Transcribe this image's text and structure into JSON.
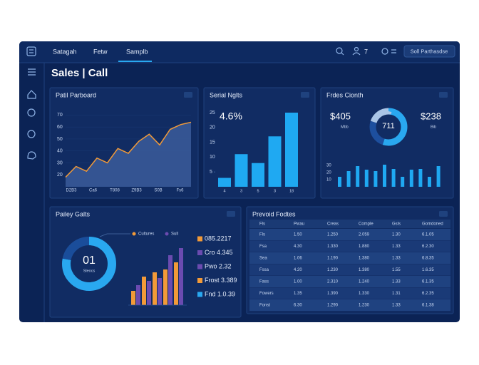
{
  "nav": {
    "tabs": [
      "Satagah",
      "Fetw",
      "Samplb"
    ],
    "badge": "7",
    "button": "Soll Parthasdse"
  },
  "header": {
    "title": "Sales | Call"
  },
  "revenue": {
    "title": "Patil Parboard",
    "type": "area",
    "color": "#f29a38",
    "values": [
      18,
      27,
      23,
      34,
      30,
      42,
      38,
      48,
      54,
      45,
      58,
      62,
      64
    ],
    "ylim": [
      10,
      75
    ],
    "yticks": [
      20,
      30,
      40,
      50,
      60,
      70
    ],
    "x_labels": [
      "D2B3",
      "Ca6",
      "T808",
      "Z9B3",
      "S0B",
      "Fs6"
    ]
  },
  "signals": {
    "title": "Serial Nglts",
    "kpi": "4.6%",
    "type": "bar",
    "color": "#1fa9f2",
    "values": [
      3,
      11,
      8,
      17,
      25
    ],
    "ylim": [
      0,
      25
    ],
    "yticks": [
      5,
      10,
      15,
      20,
      25
    ],
    "x_labels": [
      "4",
      "3",
      "5",
      "3",
      "18"
    ]
  },
  "growth": {
    "title": "Frdes Cionth",
    "kpi_left": "$405",
    "kpi_left_sub": "Mbb",
    "kpi_right": "$238",
    "kpi_right_sub": "Bib",
    "donut": {
      "center": "711",
      "values": [
        55,
        25,
        20
      ],
      "colors": [
        "#29a8f0",
        "#1d4f9e",
        "#a9c4e6"
      ]
    },
    "type": "bar",
    "color": "#1fa9f2",
    "values": [
      14,
      22,
      29,
      24,
      22,
      31,
      25,
      14,
      24,
      25,
      14,
      29
    ],
    "ylim": [
      0,
      40
    ],
    "yticks": [
      10,
      20,
      30
    ]
  },
  "payments": {
    "title": "Pailey Galts",
    "donut": {
      "center": "01",
      "sub": "Sleocs",
      "values": [
        78,
        22
      ],
      "colors": [
        "#29a8f0",
        "#1a4d9a"
      ]
    },
    "series": [
      {
        "name": "Cultures",
        "color": "#f29a38",
        "values": [
          10,
          20,
          23,
          25,
          30
        ]
      },
      {
        "name": "Sull",
        "color": "#6b4bb0",
        "values": [
          14,
          17,
          19,
          35,
          40
        ]
      }
    ],
    "ylim": [
      0,
      40
    ],
    "list": [
      {
        "text": "085.2217",
        "color": "#f29a38"
      },
      {
        "text": "Cro 4.345",
        "color": "#6b4bb0"
      },
      {
        "text": "Pwo 2.32",
        "color": "#6b4bb0"
      },
      {
        "text": "Frost 3.389",
        "color": "#f29a38"
      },
      {
        "text": "Fnd 1.0.39",
        "color": "#29a8f0"
      }
    ]
  },
  "products": {
    "title": "Prevoid Fodtes",
    "columns": [
      "Fls",
      "Pwau",
      "Creas",
      "Comple",
      "Gsls",
      "Gomdoned"
    ],
    "rows": [
      [
        "Fls",
        "1.50",
        "1.250",
        "2.059",
        "1.30",
        "6.1.05"
      ],
      [
        "Fsa",
        "4.30",
        "1.330",
        "1.880",
        "1.33",
        "6.2.30"
      ],
      [
        "Sea",
        "1.06",
        "1.190",
        "1.380",
        "1.33",
        "6.8.35"
      ],
      [
        "Fssa",
        "4.20",
        "1.230",
        "1.380",
        "1.55",
        "1.6.35"
      ],
      [
        "Fass",
        "1.00",
        "2.310",
        "1.240",
        "1.33",
        "6.1.35"
      ],
      [
        "Fowers",
        "1.35",
        "1.390",
        "1.330",
        "1.31",
        "6.2.35"
      ],
      [
        "Fonst",
        "6.30",
        "1.290",
        "1.230",
        "1.33",
        "6.1.38"
      ]
    ]
  }
}
